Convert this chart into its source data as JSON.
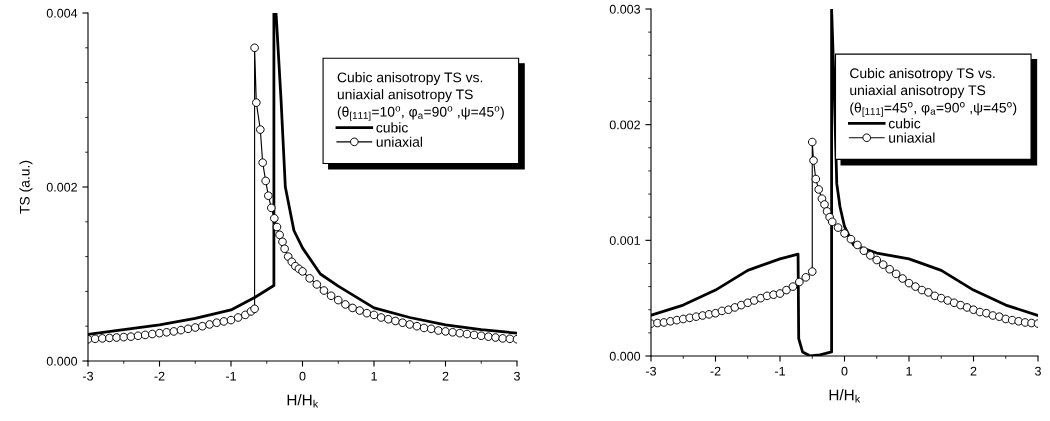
{
  "chart_data": [
    {
      "type": "line",
      "xlabel": "H/H$_{k}$",
      "ylabel": "TS (a.u.)",
      "legend_title": "Cubic anisotropy TS vs.\nuniaxial anisotropy TS\n(θ$_{[111]}$=10$^{o}$, φ$_{a}$=90$^{o}$ ,ψ=45$^{o}$)",
      "legend": "top right",
      "grid": false,
      "xlim": [
        -3,
        3
      ],
      "xticks": [
        -3,
        {
          "value": -2.5,
          "label": null
        },
        -2,
        {
          "value": -1.5,
          "label": null
        },
        -1,
        {
          "value": -0.5,
          "label": null
        },
        0,
        {
          "value": 0.5,
          "label": null
        },
        1,
        {
          "value": 1.5,
          "label": null
        },
        2,
        {
          "value": 2.5,
          "label": null
        },
        3
      ],
      "ylim": [
        0,
        0.004
      ],
      "yticks": [
        {
          "value": 0,
          "label": "0.000"
        },
        {
          "value": 0.0004,
          "label": null
        },
        {
          "value": 0.0008,
          "label": null
        },
        {
          "value": 0.0012,
          "label": null
        },
        {
          "value": 0.0016,
          "label": null
        },
        {
          "value": 0.002,
          "label": "0.002"
        },
        {
          "value": 0.0024,
          "label": null
        },
        {
          "value": 0.0028,
          "label": null
        },
        {
          "value": 0.0032,
          "label": null
        },
        {
          "value": 0.0036,
          "label": null
        },
        {
          "value": 0.004,
          "label": "0.004"
        }
      ],
      "series": [
        {
          "name": "cubic",
          "color": "#000000",
          "marker": "none",
          "line_style": "solid",
          "x": [
            -3,
            -2.5,
            -2,
            -1.5,
            -1,
            -0.67,
            -0.4,
            -0.4,
            -0.37,
            -0.3,
            -0.24,
            -0.12,
            0,
            0.25,
            0.5,
            1,
            1.5,
            2,
            2.5,
            3
          ],
          "values": [
            0.000307,
            0.00036,
            0.000415,
            0.00049,
            0.000587,
            0.00073,
            0.000868,
            0.004,
            0.004,
            0.003,
            0.002,
            0.0015,
            0.0013,
            0.001,
            0.00086,
            0.00061,
            0.0005,
            0.000415,
            0.00036,
            0.00032
          ]
        },
        {
          "name": "uniaxial",
          "color": "#000000",
          "marker": "circle",
          "line_style": "solid",
          "x": [
            -3,
            -2.9,
            -2.8,
            -2.7,
            -2.6,
            -2.5,
            -2.4,
            -2.3,
            -2.2,
            -2.1,
            -2,
            -1.9,
            -1.8,
            -1.7,
            -1.6,
            -1.5,
            -1.4,
            -1.3,
            -1.2,
            -1.1,
            -1,
            -0.9,
            -0.8,
            -0.72,
            -0.67,
            -0.67,
            -0.646,
            -0.59,
            -0.557,
            -0.515,
            -0.478,
            -0.436,
            -0.394,
            -0.357,
            -0.32,
            -0.28,
            -0.25,
            -0.2,
            -0.15,
            -0.1,
            -0.05,
            0,
            0.1,
            0.2,
            0.3,
            0.4,
            0.5,
            0.6,
            0.7,
            0.8,
            0.9,
            1,
            1.1,
            1.2,
            1.3,
            1.4,
            1.5,
            1.6,
            1.7,
            1.8,
            1.9,
            2,
            2.1,
            2.2,
            2.3,
            2.4,
            2.5,
            2.6,
            2.7,
            2.8,
            2.9,
            3
          ],
          "values": [
            0.00025,
            0.000255,
            0.00026,
            0.000265,
            0.00027,
            0.000275,
            0.00028,
            0.00029,
            0.0003,
            0.00031,
            0.00032,
            0.00033,
            0.00034,
            0.000355,
            0.00037,
            0.000385,
            0.0004,
            0.00042,
            0.00044,
            0.000455,
            0.00047,
            0.0005,
            0.00053,
            0.00057,
            0.0006,
            0.0036,
            0.00297,
            0.00266,
            0.00228,
            0.00207,
            0.0019,
            0.00176,
            0.00164,
            0.00154,
            0.00145,
            0.00137,
            0.00129,
            0.0012,
            0.00114,
            0.00109,
            0.00106,
            0.00103,
            0.00095,
            0.00088,
            0.00081,
            0.00075,
            0.0007,
            0.00065,
            0.00061,
            0.00058,
            0.00055,
            0.00053,
            0.0005,
            0.00048,
            0.00046,
            0.00044,
            0.00042,
            0.0004,
            0.00038,
            0.00037,
            0.00035,
            0.00034,
            0.00033,
            0.00032,
            0.00031,
            0.0003,
            0.00029,
            0.00028,
            0.00027,
            0.00026,
            0.000255,
            0.00025
          ]
        }
      ]
    },
    {
      "type": "line",
      "xlabel": "H/H$_{k}$",
      "legend_title": "Cubic anisotropy TS vs.\nuniaxial anisotropy TS\n(θ$_{[111]}$=45$^{o}$, φ$_{a}$=90$^{o}$ ,ψ=45$^{o}$)",
      "legend": "top right",
      "grid": false,
      "xlim": [
        -3,
        3
      ],
      "xticks": [
        -3,
        {
          "value": -2.5,
          "label": null
        },
        -2,
        {
          "value": -1.5,
          "label": null
        },
        -1,
        {
          "value": -0.5,
          "label": null
        },
        0,
        {
          "value": 0.5,
          "label": null
        },
        1,
        {
          "value": 1.5,
          "label": null
        },
        2,
        {
          "value": 2.5,
          "label": null
        },
        3
      ],
      "ylim": [
        0,
        0.003
      ],
      "yticks": [
        {
          "value": 0,
          "label": "0.000"
        },
        {
          "value": 0.0002,
          "label": null
        },
        {
          "value": 0.0004,
          "label": null
        },
        {
          "value": 0.0006,
          "label": null
        },
        {
          "value": 0.0008,
          "label": null
        },
        {
          "value": 0.001,
          "label": "0.001"
        },
        {
          "value": 0.0012,
          "label": null
        },
        {
          "value": 0.0014,
          "label": null
        },
        {
          "value": 0.0016,
          "label": null
        },
        {
          "value": 0.0018,
          "label": null
        },
        {
          "value": 0.002,
          "label": "0.002"
        },
        {
          "value": 0.0022,
          "label": null
        },
        {
          "value": 0.0024,
          "label": null
        },
        {
          "value": 0.0026,
          "label": null
        },
        {
          "value": 0.0028,
          "label": null
        },
        {
          "value": 0.003,
          "label": "0.003"
        }
      ],
      "series": [
        {
          "name": "cubic",
          "color": "#000000",
          "marker": "none",
          "line_style": "solid",
          "x": [
            -3,
            -2.5,
            -2,
            -1.5,
            -1,
            -0.72,
            -0.71,
            -0.65,
            -0.53,
            -0.38,
            -0.2,
            -0.2,
            -0.17,
            -0.145,
            -0.12,
            -0.07,
            0,
            0.14,
            0.5,
            1,
            1.5,
            2,
            2.5,
            3
          ],
          "values": [
            0.000352,
            0.00044,
            0.00057,
            0.00074,
            0.00084,
            0.00088,
            0.00015,
            3.5e-05,
            0,
            1e-05,
            3.5e-05,
            0.003,
            0.0025,
            0.002,
            0.00149,
            0.00129,
            0.00112,
            0.00096,
            0.00089,
            0.00084,
            0.00074,
            0.00057,
            0.00044,
            0.00035
          ]
        },
        {
          "name": "uniaxial",
          "color": "#000000",
          "marker": "circle",
          "line_style": "solid",
          "x": [
            -3,
            -2.9,
            -2.8,
            -2.7,
            -2.6,
            -2.5,
            -2.4,
            -2.3,
            -2.2,
            -2.1,
            -2,
            -1.9,
            -1.8,
            -1.7,
            -1.6,
            -1.5,
            -1.4,
            -1.3,
            -1.2,
            -1.1,
            -1,
            -0.9,
            -0.8,
            -0.7,
            -0.6,
            -0.5,
            -0.5,
            -0.48,
            -0.445,
            -0.4,
            -0.35,
            -0.31,
            -0.27,
            -0.23,
            -0.19,
            -0.1,
            0,
            0.1,
            0.2,
            0.3,
            0.4,
            0.5,
            0.6,
            0.7,
            0.8,
            0.9,
            1,
            1.1,
            1.2,
            1.3,
            1.4,
            1.5,
            1.6,
            1.7,
            1.8,
            1.9,
            2,
            2.1,
            2.2,
            2.3,
            2.4,
            2.5,
            2.6,
            2.7,
            2.8,
            2.9,
            3
          ],
          "values": [
            0.00028,
            0.000285,
            0.00029,
            0.0003,
            0.00031,
            0.00032,
            0.00033,
            0.00034,
            0.00035,
            0.00036,
            0.00037,
            0.00039,
            0.0004,
            0.00042,
            0.00044,
            0.00046,
            0.00048,
            0.0005,
            0.00052,
            0.00053,
            0.00054,
            0.00057,
            0.0006,
            0.00064,
            0.00068,
            0.00073,
            0.00185,
            0.00169,
            0.00153,
            0.00144,
            0.00136,
            0.00131,
            0.00125,
            0.0012,
            0.00116,
            0.00111,
            0.00106,
            0.00101,
            0.00096,
            0.00091,
            0.00087,
            0.00083,
            0.00079,
            0.00075,
            0.00071,
            0.00067,
            0.00063,
            0.0006,
            0.00057,
            0.00055,
            0.00052,
            0.0005,
            0.00048,
            0.00046,
            0.00044,
            0.00042,
            0.0004,
            0.00038,
            0.00037,
            0.00035,
            0.00034,
            0.00032,
            0.00031,
            0.0003,
            0.00029,
            0.000285,
            0.00028
          ]
        }
      ]
    }
  ]
}
